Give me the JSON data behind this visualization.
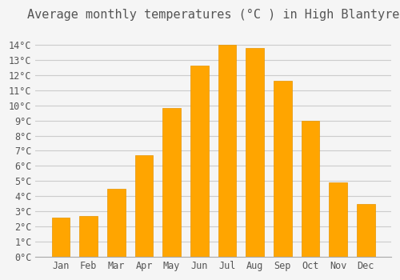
{
  "title": "Average monthly temperatures (°C ) in High Blantyre",
  "months": [
    "Jan",
    "Feb",
    "Mar",
    "Apr",
    "May",
    "Jun",
    "Jul",
    "Aug",
    "Sep",
    "Oct",
    "Nov",
    "Dec"
  ],
  "values": [
    2.6,
    2.7,
    4.5,
    6.7,
    9.8,
    12.6,
    14.0,
    13.8,
    11.6,
    9.0,
    4.9,
    3.5
  ],
  "bar_color": "#FFA500",
  "bar_edge_color": "#E69500",
  "background_color": "#F5F5F5",
  "grid_color": "#CCCCCC",
  "ylim": [
    0,
    15
  ],
  "yticks": [
    0,
    1,
    2,
    3,
    4,
    5,
    6,
    7,
    8,
    9,
    10,
    11,
    12,
    13,
    14
  ],
  "title_fontsize": 11,
  "tick_fontsize": 8.5,
  "font_color": "#555555"
}
